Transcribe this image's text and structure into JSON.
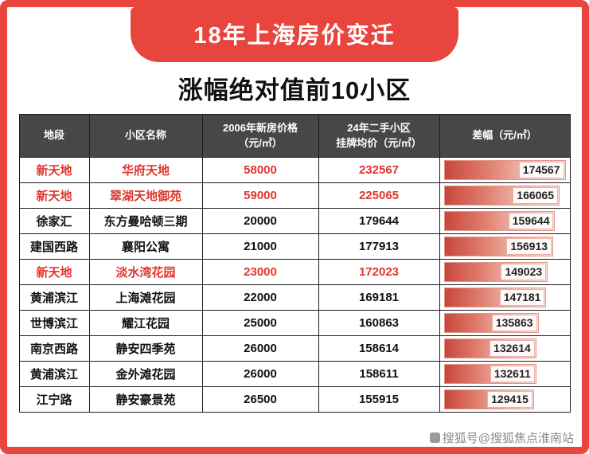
{
  "banner": {
    "title": "18年上海房价变迁"
  },
  "page_title": "涨幅绝对值前10小区",
  "chart_data": {
    "type": "table",
    "title": "涨幅绝对值前10小区",
    "subtitle_banner": "18年上海房价变迁",
    "columns": [
      "地段",
      "小区名称",
      "2006年新房价格\n（元/㎡）",
      "24年二手小区\n挂牌均价（元/㎡）",
      "差幅（元/㎡）"
    ],
    "diff_bar_max": 174567,
    "rows": [
      {
        "district": "新天地",
        "community": "华府天地",
        "price_2006": "58000",
        "listing_2024": "232567",
        "diff": "174567",
        "highlight": true
      },
      {
        "district": "新天地",
        "community": "翠湖天地御苑",
        "price_2006": "59000",
        "listing_2024": "225065",
        "diff": "166065",
        "highlight": true
      },
      {
        "district": "徐家汇",
        "community": "东方曼哈顿三期",
        "price_2006": "20000",
        "listing_2024": "179644",
        "diff": "159644",
        "highlight": false
      },
      {
        "district": "建国西路",
        "community": "襄阳公寓",
        "price_2006": "21000",
        "listing_2024": "177913",
        "diff": "156913",
        "highlight": false
      },
      {
        "district": "新天地",
        "community": "淡水湾花园",
        "price_2006": "23000",
        "listing_2024": "172023",
        "diff": "149023",
        "highlight": true
      },
      {
        "district": "黄浦滨江",
        "community": "上海滩花园",
        "price_2006": "22000",
        "listing_2024": "169181",
        "diff": "147181",
        "highlight": false
      },
      {
        "district": "世博滨江",
        "community": "耀江花园",
        "price_2006": "25000",
        "listing_2024": "160863",
        "diff": "135863",
        "highlight": false
      },
      {
        "district": "南京西路",
        "community": "静安四季苑",
        "price_2006": "26000",
        "listing_2024": "158614",
        "diff": "132614",
        "highlight": false
      },
      {
        "district": "黄浦滨江",
        "community": "金外滩花园",
        "price_2006": "26000",
        "listing_2024": "158611",
        "diff": "132611",
        "highlight": false
      },
      {
        "district": "江宁路",
        "community": "静安豪景苑",
        "price_2006": "26500",
        "listing_2024": "155915",
        "diff": "129415",
        "highlight": false
      }
    ]
  },
  "watermark": "搜狐号@搜狐焦点淮南站",
  "colors": {
    "accent_red": "#e8453e",
    "highlight_text": "#e0362e",
    "header_bg": "#474747",
    "bar_gradient_start": "#c8473b",
    "bar_gradient_end": "#fbe5e1"
  }
}
